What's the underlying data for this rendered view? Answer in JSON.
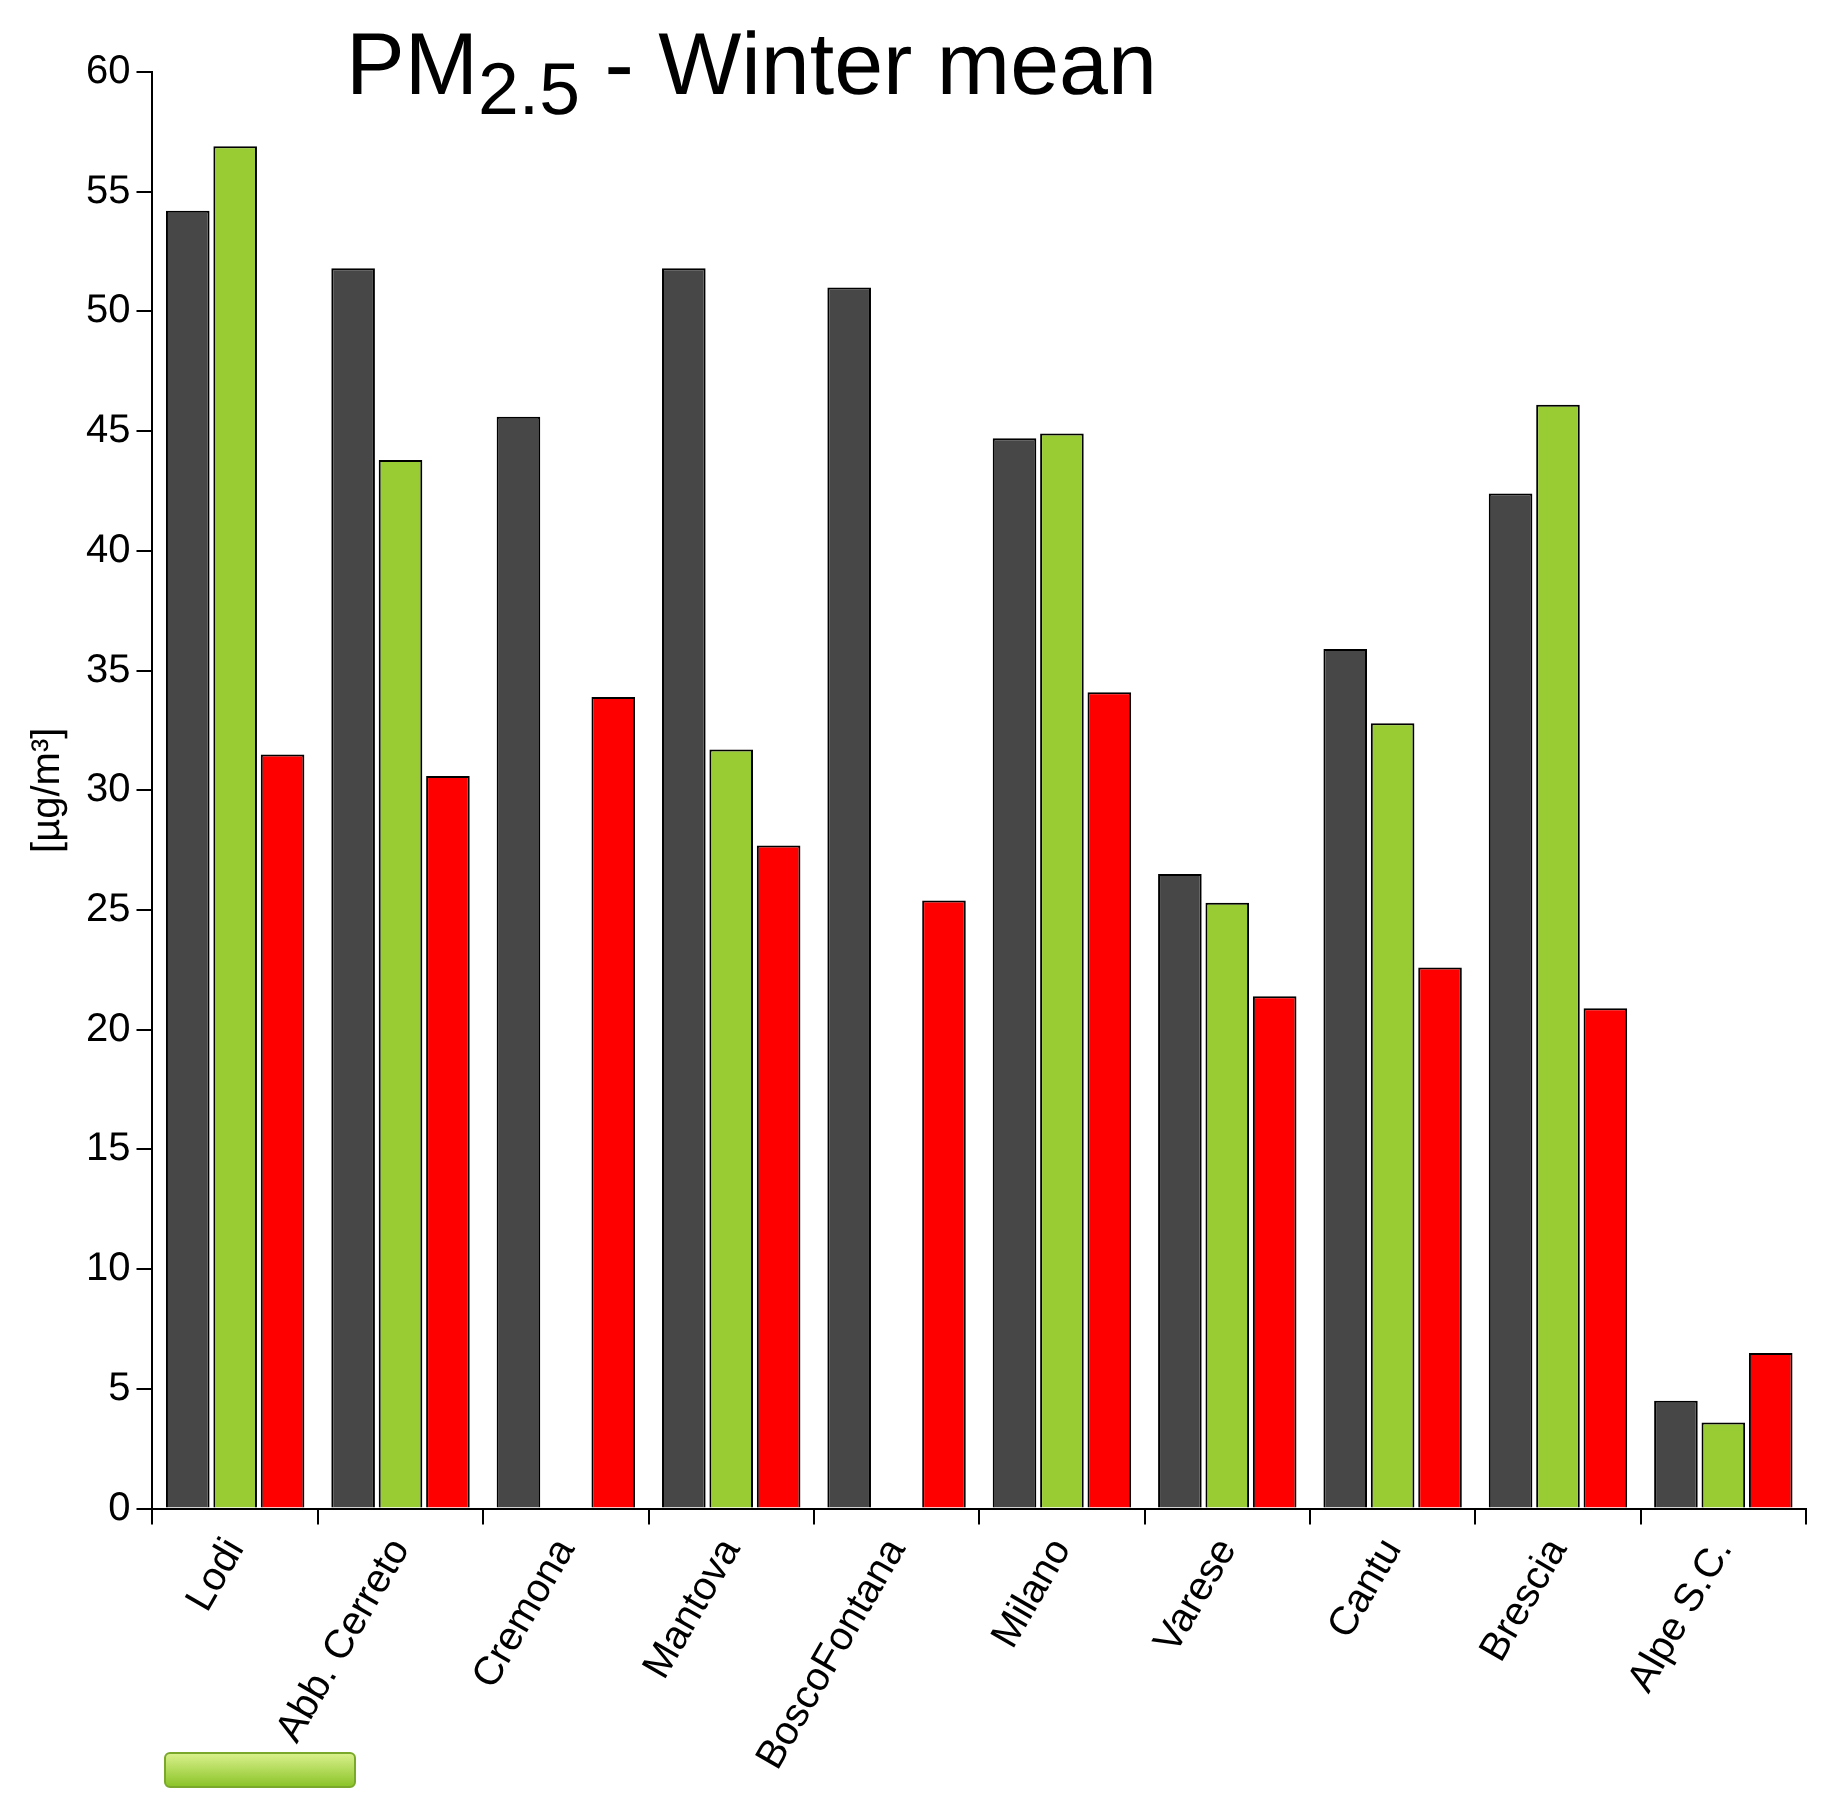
{
  "chart_data": {
    "type": "bar",
    "title": "PM$_{2.5}$ - Winter mean",
    "ylabel": "[µg/m³]",
    "categories": [
      "Lodi",
      "Abb. Cerreto",
      "Cremona",
      "Mantova",
      "BoscoFontana",
      "Milano",
      "Varese",
      "Cantu",
      "Brescia",
      "Alpe S.C."
    ],
    "series": [
      {
        "color": "#474747",
        "values": [
          54.2,
          51.8,
          45.6,
          51.8,
          51.0,
          44.7,
          26.5,
          35.9,
          42.4,
          4.5
        ]
      },
      {
        "color": "#99cc33",
        "values": [
          56.9,
          43.8,
          null,
          31.7,
          null,
          44.9,
          25.3,
          32.8,
          46.1,
          3.6
        ]
      },
      {
        "color": "#ff0000",
        "values": [
          31.5,
          30.6,
          33.9,
          27.7,
          25.4,
          34.1,
          21.4,
          22.6,
          20.9,
          6.5
        ]
      }
    ],
    "ylim": [
      0,
      60
    ],
    "yticks": [
      0,
      5,
      10,
      15,
      20,
      25,
      30,
      35,
      40,
      45,
      50,
      55,
      60
    ],
    "legend": false
  }
}
